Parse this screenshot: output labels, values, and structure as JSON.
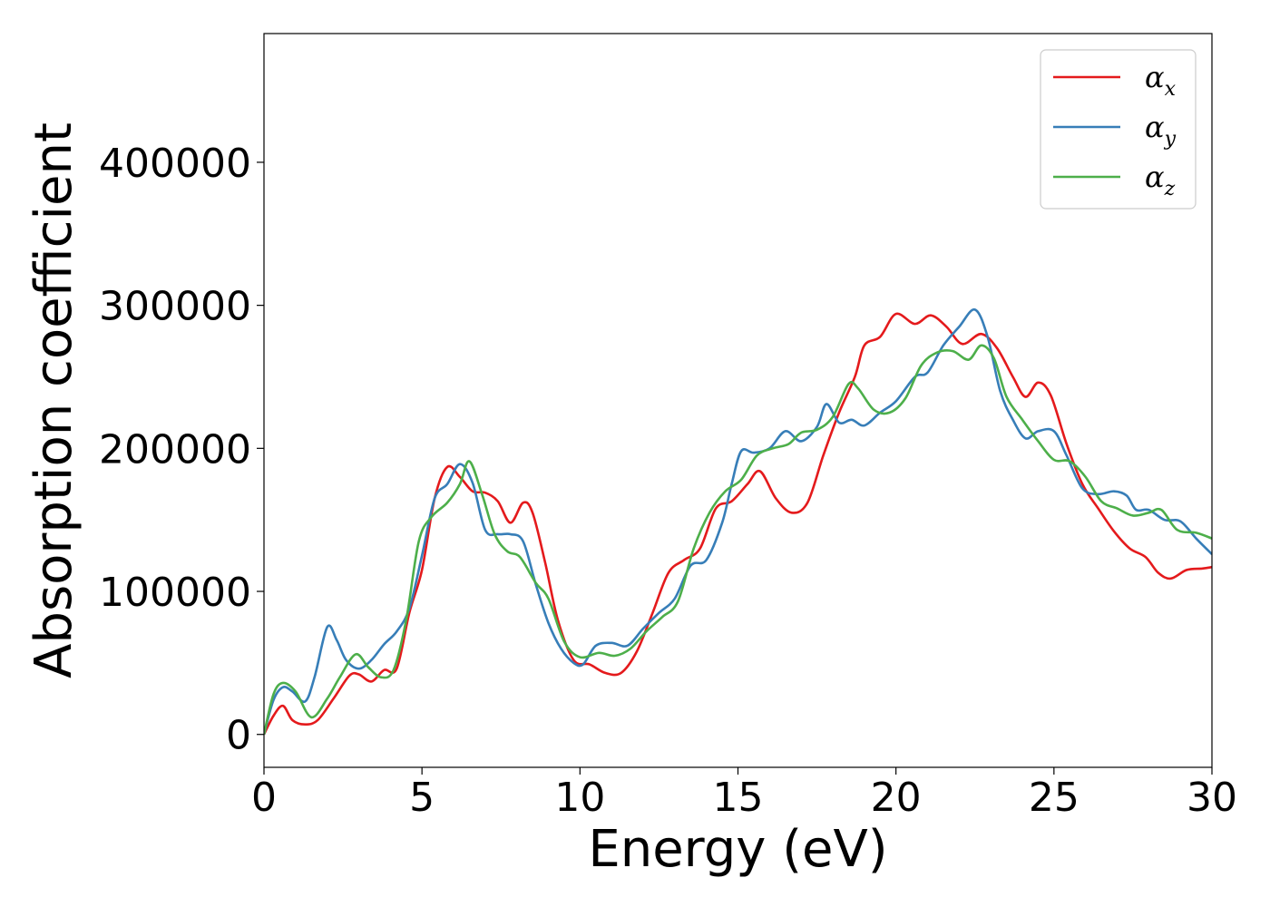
{
  "chart_data": {
    "type": "line",
    "xlabel": "Energy (eV)",
    "ylabel": "Absorption coefficient",
    "xlim": [
      0,
      30
    ],
    "ylim": [
      -23000,
      490000
    ],
    "xticks": [
      0,
      5,
      10,
      15,
      20,
      25,
      30
    ],
    "xtick_labels": [
      "0",
      "5",
      "10",
      "15",
      "20",
      "25",
      "30"
    ],
    "yticks": [
      0,
      100000,
      200000,
      300000,
      400000
    ],
    "ytick_labels": [
      "0",
      "100000",
      "200000",
      "300000",
      "400000"
    ],
    "grid": false,
    "legend_position": "top-right",
    "series": [
      {
        "name": "α",
        "subscript": "x",
        "color": "#e41a1c",
        "points": [
          [
            0,
            0
          ],
          [
            0.3,
            13000
          ],
          [
            0.6,
            20000
          ],
          [
            0.9,
            10000
          ],
          [
            1.3,
            7000
          ],
          [
            1.7,
            10000
          ],
          [
            2.2,
            25000
          ],
          [
            2.7,
            41000
          ],
          [
            3.0,
            42000
          ],
          [
            3.4,
            37000
          ],
          [
            3.8,
            45000
          ],
          [
            4.2,
            46000
          ],
          [
            4.6,
            85000
          ],
          [
            5.0,
            115000
          ],
          [
            5.4,
            165000
          ],
          [
            5.8,
            187000
          ],
          [
            6.2,
            180000
          ],
          [
            6.6,
            170000
          ],
          [
            7.0,
            169000
          ],
          [
            7.4,
            163000
          ],
          [
            7.8,
            148000
          ],
          [
            8.2,
            162000
          ],
          [
            8.5,
            155000
          ],
          [
            8.9,
            120000
          ],
          [
            9.3,
            80000
          ],
          [
            9.8,
            52000
          ],
          [
            10.3,
            49000
          ],
          [
            10.8,
            43000
          ],
          [
            11.3,
            43000
          ],
          [
            11.8,
            58000
          ],
          [
            12.3,
            85000
          ],
          [
            12.8,
            113000
          ],
          [
            13.3,
            122000
          ],
          [
            13.8,
            130000
          ],
          [
            14.3,
            158000
          ],
          [
            14.8,
            163000
          ],
          [
            15.3,
            175000
          ],
          [
            15.7,
            184000
          ],
          [
            16.2,
            165000
          ],
          [
            16.7,
            155000
          ],
          [
            17.2,
            162000
          ],
          [
            17.7,
            195000
          ],
          [
            18.2,
            225000
          ],
          [
            18.7,
            250000
          ],
          [
            19.0,
            272000
          ],
          [
            19.5,
            278000
          ],
          [
            20.0,
            294000
          ],
          [
            20.6,
            287000
          ],
          [
            21.1,
            293000
          ],
          [
            21.6,
            285000
          ],
          [
            22.1,
            273000
          ],
          [
            22.7,
            280000
          ],
          [
            23.2,
            270000
          ],
          [
            23.7,
            250000
          ],
          [
            24.1,
            236000
          ],
          [
            24.5,
            246000
          ],
          [
            24.9,
            237000
          ],
          [
            25.4,
            203000
          ],
          [
            25.9,
            175000
          ],
          [
            26.4,
            158000
          ],
          [
            26.9,
            142000
          ],
          [
            27.4,
            130000
          ],
          [
            27.9,
            124000
          ],
          [
            28.3,
            113000
          ],
          [
            28.7,
            109000
          ],
          [
            29.2,
            115000
          ],
          [
            29.7,
            116000
          ],
          [
            30.0,
            117000
          ]
        ]
      },
      {
        "name": "α",
        "subscript": "y",
        "color": "#377eb8",
        "points": [
          [
            0,
            0
          ],
          [
            0.3,
            24000
          ],
          [
            0.6,
            33000
          ],
          [
            0.9,
            30000
          ],
          [
            1.3,
            23000
          ],
          [
            1.6,
            40000
          ],
          [
            2.0,
            75000
          ],
          [
            2.3,
            66000
          ],
          [
            2.6,
            52000
          ],
          [
            3.0,
            46000
          ],
          [
            3.4,
            52000
          ],
          [
            3.8,
            63000
          ],
          [
            4.2,
            72000
          ],
          [
            4.6,
            88000
          ],
          [
            5.0,
            125000
          ],
          [
            5.4,
            165000
          ],
          [
            5.8,
            175000
          ],
          [
            6.2,
            189000
          ],
          [
            6.6,
            176000
          ],
          [
            7.0,
            143000
          ],
          [
            7.4,
            140000
          ],
          [
            7.8,
            140000
          ],
          [
            8.2,
            135000
          ],
          [
            8.6,
            105000
          ],
          [
            9.0,
            78000
          ],
          [
            9.4,
            60000
          ],
          [
            9.8,
            50000
          ],
          [
            10.1,
            49000
          ],
          [
            10.5,
            62000
          ],
          [
            11.0,
            64000
          ],
          [
            11.5,
            62000
          ],
          [
            12.0,
            74000
          ],
          [
            12.5,
            85000
          ],
          [
            13.0,
            95000
          ],
          [
            13.5,
            118000
          ],
          [
            14.0,
            122000
          ],
          [
            14.5,
            148000
          ],
          [
            14.8,
            175000
          ],
          [
            15.1,
            198000
          ],
          [
            15.5,
            197000
          ],
          [
            16.0,
            200000
          ],
          [
            16.5,
            212000
          ],
          [
            17.0,
            205000
          ],
          [
            17.5,
            215000
          ],
          [
            17.8,
            231000
          ],
          [
            18.2,
            218000
          ],
          [
            18.6,
            220000
          ],
          [
            19.0,
            216000
          ],
          [
            19.5,
            225000
          ],
          [
            20.0,
            233000
          ],
          [
            20.6,
            250000
          ],
          [
            21.0,
            253000
          ],
          [
            21.5,
            272000
          ],
          [
            22.0,
            285000
          ],
          [
            22.5,
            297000
          ],
          [
            22.9,
            278000
          ],
          [
            23.3,
            240000
          ],
          [
            23.7,
            220000
          ],
          [
            24.1,
            207000
          ],
          [
            24.5,
            212000
          ],
          [
            25.0,
            212000
          ],
          [
            25.4,
            195000
          ],
          [
            25.9,
            172000
          ],
          [
            26.4,
            168000
          ],
          [
            26.9,
            170000
          ],
          [
            27.3,
            167000
          ],
          [
            27.6,
            157000
          ],
          [
            28.0,
            157000
          ],
          [
            28.5,
            150000
          ],
          [
            29.0,
            149000
          ],
          [
            29.5,
            137000
          ],
          [
            30.0,
            126000
          ]
        ]
      },
      {
        "name": "α",
        "subscript": "z",
        "color": "#4daf4a",
        "points": [
          [
            0,
            0
          ],
          [
            0.3,
            28000
          ],
          [
            0.6,
            36000
          ],
          [
            1.0,
            30000
          ],
          [
            1.5,
            12000
          ],
          [
            2.0,
            25000
          ],
          [
            2.4,
            40000
          ],
          [
            2.9,
            56000
          ],
          [
            3.3,
            47000
          ],
          [
            3.7,
            40000
          ],
          [
            4.1,
            45000
          ],
          [
            4.5,
            80000
          ],
          [
            4.9,
            135000
          ],
          [
            5.3,
            152000
          ],
          [
            5.8,
            162000
          ],
          [
            6.2,
            175000
          ],
          [
            6.5,
            191000
          ],
          [
            6.9,
            168000
          ],
          [
            7.3,
            140000
          ],
          [
            7.7,
            128000
          ],
          [
            8.1,
            124000
          ],
          [
            8.6,
            106000
          ],
          [
            9.0,
            95000
          ],
          [
            9.5,
            65000
          ],
          [
            10.0,
            54000
          ],
          [
            10.6,
            57000
          ],
          [
            11.1,
            55000
          ],
          [
            11.6,
            60000
          ],
          [
            12.1,
            72000
          ],
          [
            12.6,
            82000
          ],
          [
            13.1,
            93000
          ],
          [
            13.6,
            130000
          ],
          [
            14.1,
            155000
          ],
          [
            14.6,
            170000
          ],
          [
            15.1,
            178000
          ],
          [
            15.6,
            195000
          ],
          [
            16.1,
            200000
          ],
          [
            16.6,
            203000
          ],
          [
            17.0,
            211000
          ],
          [
            17.5,
            213000
          ],
          [
            18.0,
            222000
          ],
          [
            18.5,
            245000
          ],
          [
            18.8,
            242000
          ],
          [
            19.3,
            227000
          ],
          [
            19.8,
            225000
          ],
          [
            20.3,
            235000
          ],
          [
            20.8,
            258000
          ],
          [
            21.3,
            267000
          ],
          [
            21.8,
            268000
          ],
          [
            22.3,
            262000
          ],
          [
            22.7,
            272000
          ],
          [
            23.1,
            263000
          ],
          [
            23.5,
            236000
          ],
          [
            24.0,
            220000
          ],
          [
            24.5,
            205000
          ],
          [
            25.0,
            192000
          ],
          [
            25.5,
            191000
          ],
          [
            26.0,
            180000
          ],
          [
            26.5,
            163000
          ],
          [
            27.0,
            158000
          ],
          [
            27.5,
            153000
          ],
          [
            28.0,
            155000
          ],
          [
            28.4,
            157000
          ],
          [
            28.9,
            143000
          ],
          [
            29.5,
            141000
          ],
          [
            30.0,
            137000
          ]
        ]
      }
    ]
  }
}
